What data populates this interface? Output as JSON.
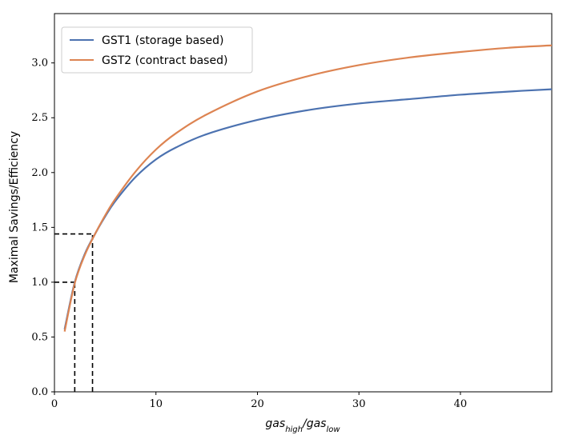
{
  "chart_data": {
    "type": "line",
    "title": "",
    "xlabel": "gas_high/gas_low",
    "ylabel": "Maximal Savings/Efficiency",
    "xlim": [
      0,
      49
    ],
    "ylim": [
      0,
      3.45
    ],
    "x_ticks": [
      0,
      10,
      20,
      30,
      40
    ],
    "y_ticks": [
      0.0,
      0.5,
      1.0,
      1.5,
      2.0,
      2.5,
      3.0
    ],
    "x_tick_labels": [
      "0",
      "10",
      "20",
      "30",
      "40"
    ],
    "y_tick_labels": [
      "0.0",
      "0.5",
      "1.0",
      "1.5",
      "2.0",
      "2.5",
      "3.0"
    ],
    "grid": false,
    "legend_position": "top-left",
    "series": [
      {
        "name": "GST1 (storage based)",
        "color": "#4c72b0",
        "x": [
          1,
          2,
          3,
          4,
          5,
          6,
          8,
          10,
          12,
          15,
          20,
          25,
          30,
          35,
          40,
          45,
          49
        ],
        "values": [
          0.57,
          1.0,
          1.26,
          1.44,
          1.6,
          1.74,
          1.96,
          2.12,
          2.23,
          2.35,
          2.48,
          2.57,
          2.63,
          2.67,
          2.71,
          2.74,
          2.76
        ]
      },
      {
        "name": "GST2 (contract based)",
        "color": "#dd8452",
        "x": [
          1,
          2,
          3,
          4,
          5,
          6,
          8,
          10,
          12,
          15,
          20,
          25,
          30,
          35,
          40,
          45,
          49
        ],
        "values": [
          0.55,
          0.99,
          1.25,
          1.44,
          1.61,
          1.76,
          2.01,
          2.21,
          2.36,
          2.53,
          2.74,
          2.88,
          2.98,
          3.05,
          3.1,
          3.14,
          3.16
        ]
      }
    ],
    "reference_lines": [
      {
        "x": 2,
        "y": 1.0
      },
      {
        "x": 3.75,
        "y": 1.44
      }
    ]
  }
}
